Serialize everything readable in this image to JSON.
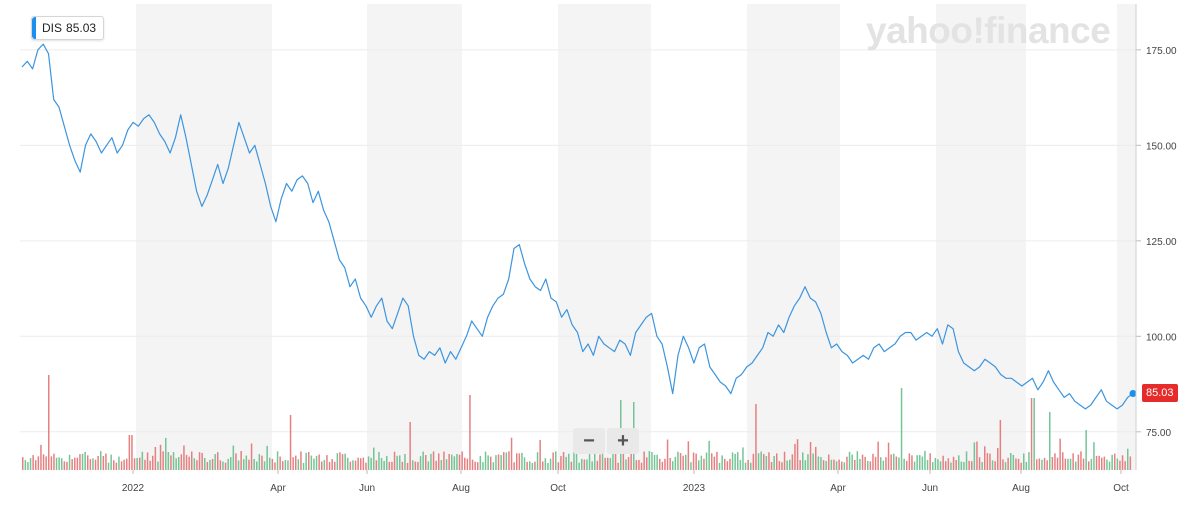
{
  "badge": {
    "symbol": "DIS",
    "price": "85.03"
  },
  "watermark": "yahoo!finance",
  "zoom": {
    "minus": "−",
    "plus": "+"
  },
  "last_price_label": "85.03",
  "colors": {
    "line": "#3d95de",
    "badge_accent": "#1b8ff0",
    "last_price": "#e62b2b",
    "volume_up": "#5dbb84",
    "volume_down": "#e26b6b",
    "band": "#f4f4f4",
    "grid": "#ececec"
  },
  "chart_data": {
    "type": "line",
    "ticker": "DIS",
    "x_ticks": [
      "2022",
      "Apr",
      "Jun",
      "Aug",
      "Oct",
      "2023",
      "Apr",
      "Jun",
      "Aug",
      "Oct"
    ],
    "y_ticks": [
      "175.00",
      "150.00",
      "125.00",
      "100.00",
      "75.00"
    ],
    "ylim": [
      65,
      187
    ],
    "grid": true,
    "volume_bars": true,
    "series": [
      {
        "values": [
          170.5,
          172,
          170,
          175,
          176.5,
          174,
          162,
          160,
          155,
          150,
          146,
          143,
          150,
          153,
          151,
          148,
          150,
          152,
          148,
          150,
          154,
          156,
          155,
          157,
          158,
          156,
          153,
          151,
          148,
          152,
          158,
          152,
          145,
          138,
          134,
          137,
          141,
          145,
          140,
          144,
          150,
          156,
          152,
          148,
          150,
          145,
          140,
          134,
          130,
          136,
          140,
          138,
          141,
          142,
          140,
          135,
          138,
          133,
          130,
          125,
          120,
          118,
          113,
          115,
          110,
          108,
          105,
          108,
          110,
          104,
          102,
          106,
          110,
          108,
          100,
          95,
          94,
          96,
          95,
          97,
          93,
          96,
          94,
          97,
          100,
          104,
          102,
          100,
          105,
          108,
          110,
          111,
          115,
          123,
          124,
          119,
          115,
          113,
          112,
          115,
          110,
          109,
          105,
          107,
          103,
          101,
          96,
          98,
          95,
          100,
          98,
          97,
          96,
          99,
          98,
          95,
          101,
          103,
          105,
          106,
          100,
          98,
          92,
          85,
          95,
          100,
          97,
          93,
          97,
          98,
          92,
          90,
          88,
          87,
          85,
          89,
          90,
          92,
          93,
          95,
          97,
          101,
          100,
          103,
          101,
          105,
          108,
          110,
          113,
          110,
          109,
          106,
          101,
          97,
          98,
          96,
          95,
          93,
          94,
          95,
          94,
          97,
          98,
          96,
          97,
          98,
          100,
          101,
          101,
          99,
          100,
          101,
          100,
          102,
          98,
          103,
          102,
          96,
          93,
          92,
          91,
          92,
          94,
          93,
          92,
          90,
          89,
          89,
          88,
          87,
          88,
          89,
          86,
          88,
          91,
          88,
          86,
          84,
          85,
          83,
          82,
          81,
          82,
          84,
          86,
          83,
          82,
          81,
          82,
          84,
          85.03
        ]
      }
    ],
    "last_value": 85.03
  }
}
